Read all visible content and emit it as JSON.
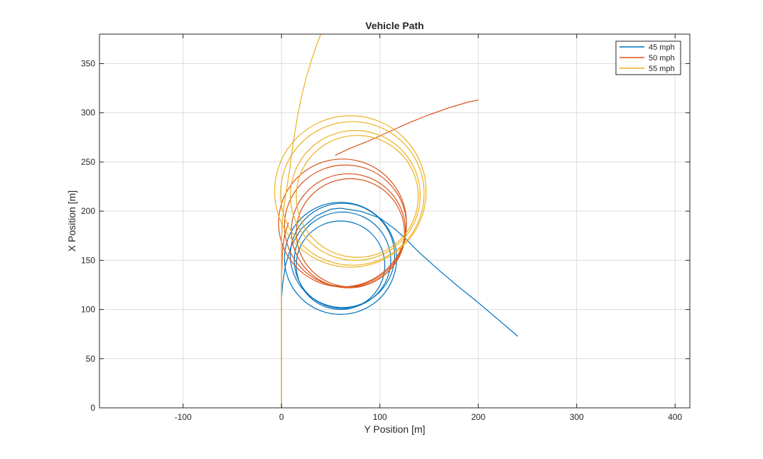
{
  "chart_data": {
    "type": "line",
    "title": "Vehicle Path",
    "xlabel": "Y Position [m]",
    "ylabel": "X Position [m]",
    "xlim": [
      -185,
      415
    ],
    "ylim": [
      0,
      380
    ],
    "xticks": [
      -100,
      0,
      100,
      200,
      300,
      400
    ],
    "yticks": [
      0,
      50,
      100,
      150,
      200,
      250,
      300,
      350
    ],
    "grid": true,
    "legend_position": "top-right",
    "series": [
      {
        "name": "45 mph",
        "color": "#0072BD",
        "approach": {
          "x": [
            0,
            0,
            1,
            4,
            10,
            20,
            35,
            50,
            60
          ],
          "y": [
            0,
            110,
            125,
            145,
            165,
            182,
            195,
            202,
            203
          ]
        },
        "loops": [
          {
            "cx": 62,
            "cy": 155,
            "r": 53
          },
          {
            "cx": 60,
            "cy": 145,
            "r": 45
          },
          {
            "cx": 60,
            "cy": 152,
            "r": 57
          },
          {
            "cx": 62,
            "cy": 150,
            "r": 49
          }
        ],
        "exit": {
          "x": [
            60,
            80,
            100,
            115,
            125,
            140,
            160,
            180,
            200,
            220,
            240
          ],
          "y": [
            203,
            200,
            193,
            182,
            173,
            158,
            140,
            123,
            107,
            90,
            73
          ]
        }
      },
      {
        "name": "50 mph",
        "color": "#D95319",
        "approach": {
          "x": [
            0,
            0,
            1,
            3,
            7
          ],
          "y": [
            0,
            130,
            160,
            175,
            188
          ]
        },
        "loops": [
          {
            "cx": 62,
            "cy": 188,
            "r": 65
          },
          {
            "cx": 70,
            "cy": 178,
            "r": 55
          },
          {
            "cx": 65,
            "cy": 185,
            "r": 62
          },
          {
            "cx": 68,
            "cy": 180,
            "r": 58
          }
        ],
        "exit": {
          "x": [
            55,
            70,
            90,
            110,
            130,
            150,
            170,
            190,
            200
          ],
          "y": [
            257,
            264,
            272,
            281,
            290,
            298,
            305,
            311,
            313
          ]
        }
      },
      {
        "name": "55 mph",
        "color": "#EDB120",
        "approach": {
          "x": [
            0,
            0,
            0,
            1,
            2,
            4,
            8,
            12,
            16,
            20,
            25,
            30,
            35,
            40,
            41
          ],
          "y": [
            0,
            100,
            170,
            190,
            200,
            215,
            240,
            270,
            295,
            315,
            335,
            352,
            367,
            380,
            383
          ]
        },
        "loops": [
          {
            "cx": 70,
            "cy": 220,
            "r": 77
          },
          {
            "cx": 77,
            "cy": 215,
            "r": 62
          },
          {
            "cx": 72,
            "cy": 218,
            "r": 73
          },
          {
            "cx": 75,
            "cy": 216,
            "r": 66
          }
        ]
      }
    ]
  }
}
